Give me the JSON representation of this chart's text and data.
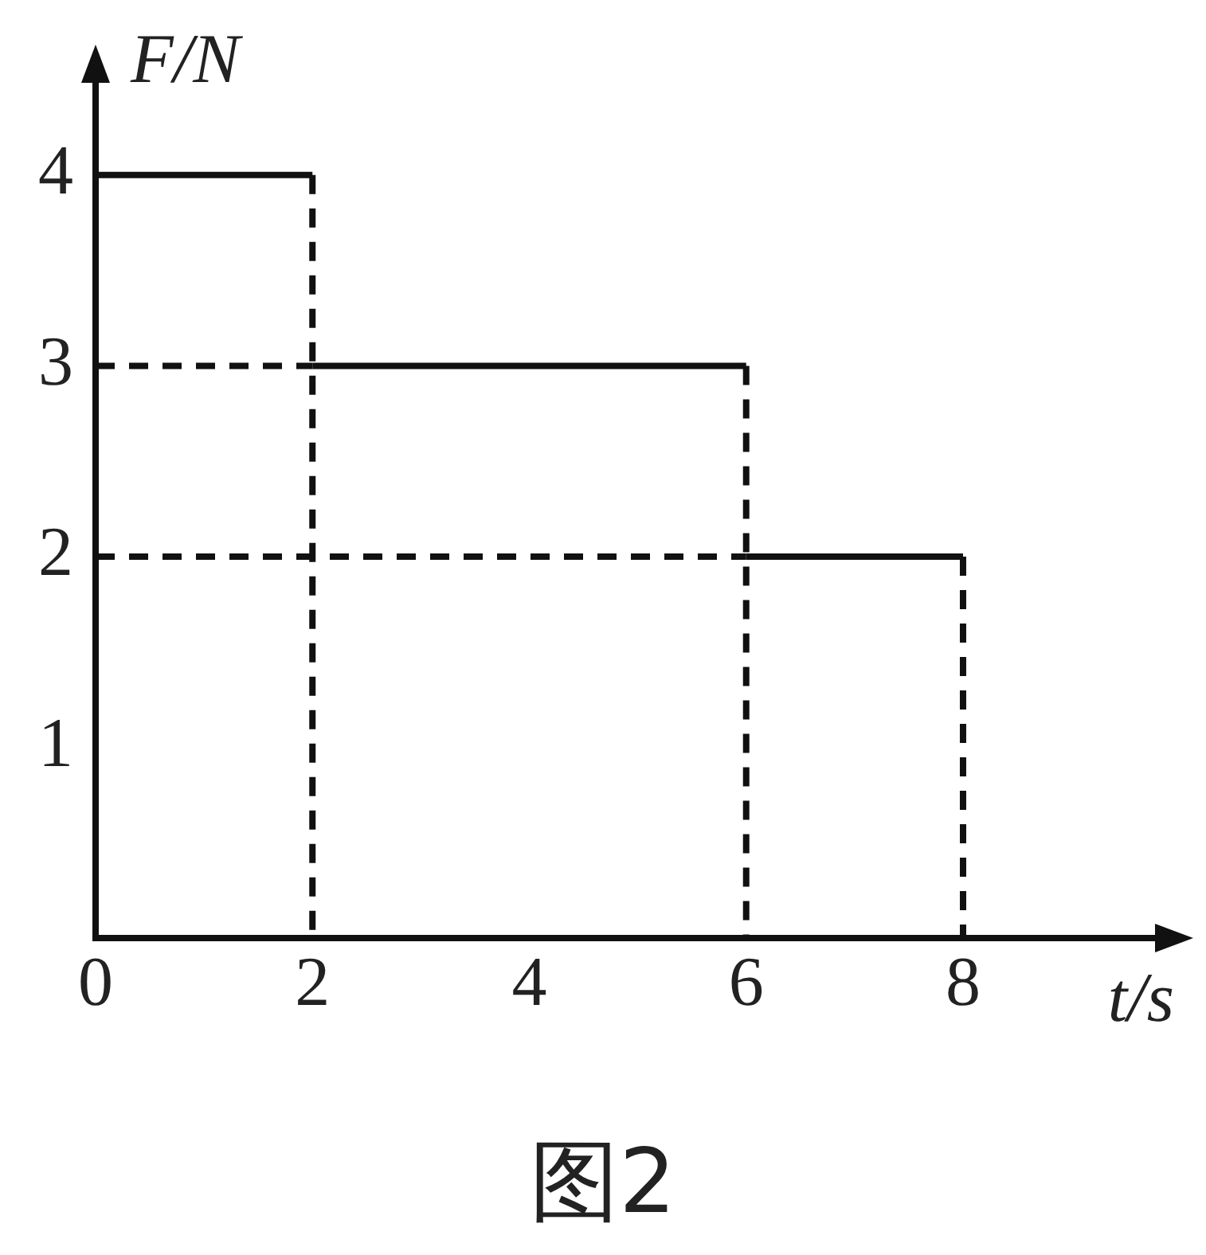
{
  "chart_data": {
    "type": "line",
    "xlabel": "t/s",
    "ylabel": "F/N",
    "xlim": [
      0,
      9.8
    ],
    "ylim": [
      0,
      4.5
    ],
    "xticks": [
      0,
      2,
      4,
      6,
      8
    ],
    "yticks": [
      1,
      2,
      3,
      4
    ],
    "grid": false,
    "legend": false,
    "marker": "none",
    "series": [
      {
        "color": "#111111",
        "line_style": "solid",
        "x": [
          0,
          2
        ],
        "values": [
          4,
          4
        ]
      },
      {
        "color": "#111111",
        "line_style": "solid",
        "x": [
          2,
          6
        ],
        "values": [
          3,
          3
        ]
      },
      {
        "color": "#111111",
        "line_style": "solid",
        "x": [
          6,
          8
        ],
        "values": [
          2,
          2
        ]
      },
      {
        "color": "#111111",
        "line_style": "dashed",
        "x": [
          2,
          2
        ],
        "values": [
          4,
          0
        ]
      },
      {
        "color": "#111111",
        "line_style": "dashed",
        "x": [
          6,
          6
        ],
        "values": [
          3,
          0
        ]
      },
      {
        "color": "#111111",
        "line_style": "dashed",
        "x": [
          8,
          8
        ],
        "values": [
          2,
          0
        ]
      },
      {
        "color": "#111111",
        "line_style": "dashed",
        "x": [
          0,
          2
        ],
        "values": [
          3,
          3
        ]
      },
      {
        "color": "#111111",
        "line_style": "dashed",
        "x": [
          0,
          6
        ],
        "values": [
          2,
          2
        ]
      }
    ],
    "annotations": [
      "图2"
    ]
  }
}
